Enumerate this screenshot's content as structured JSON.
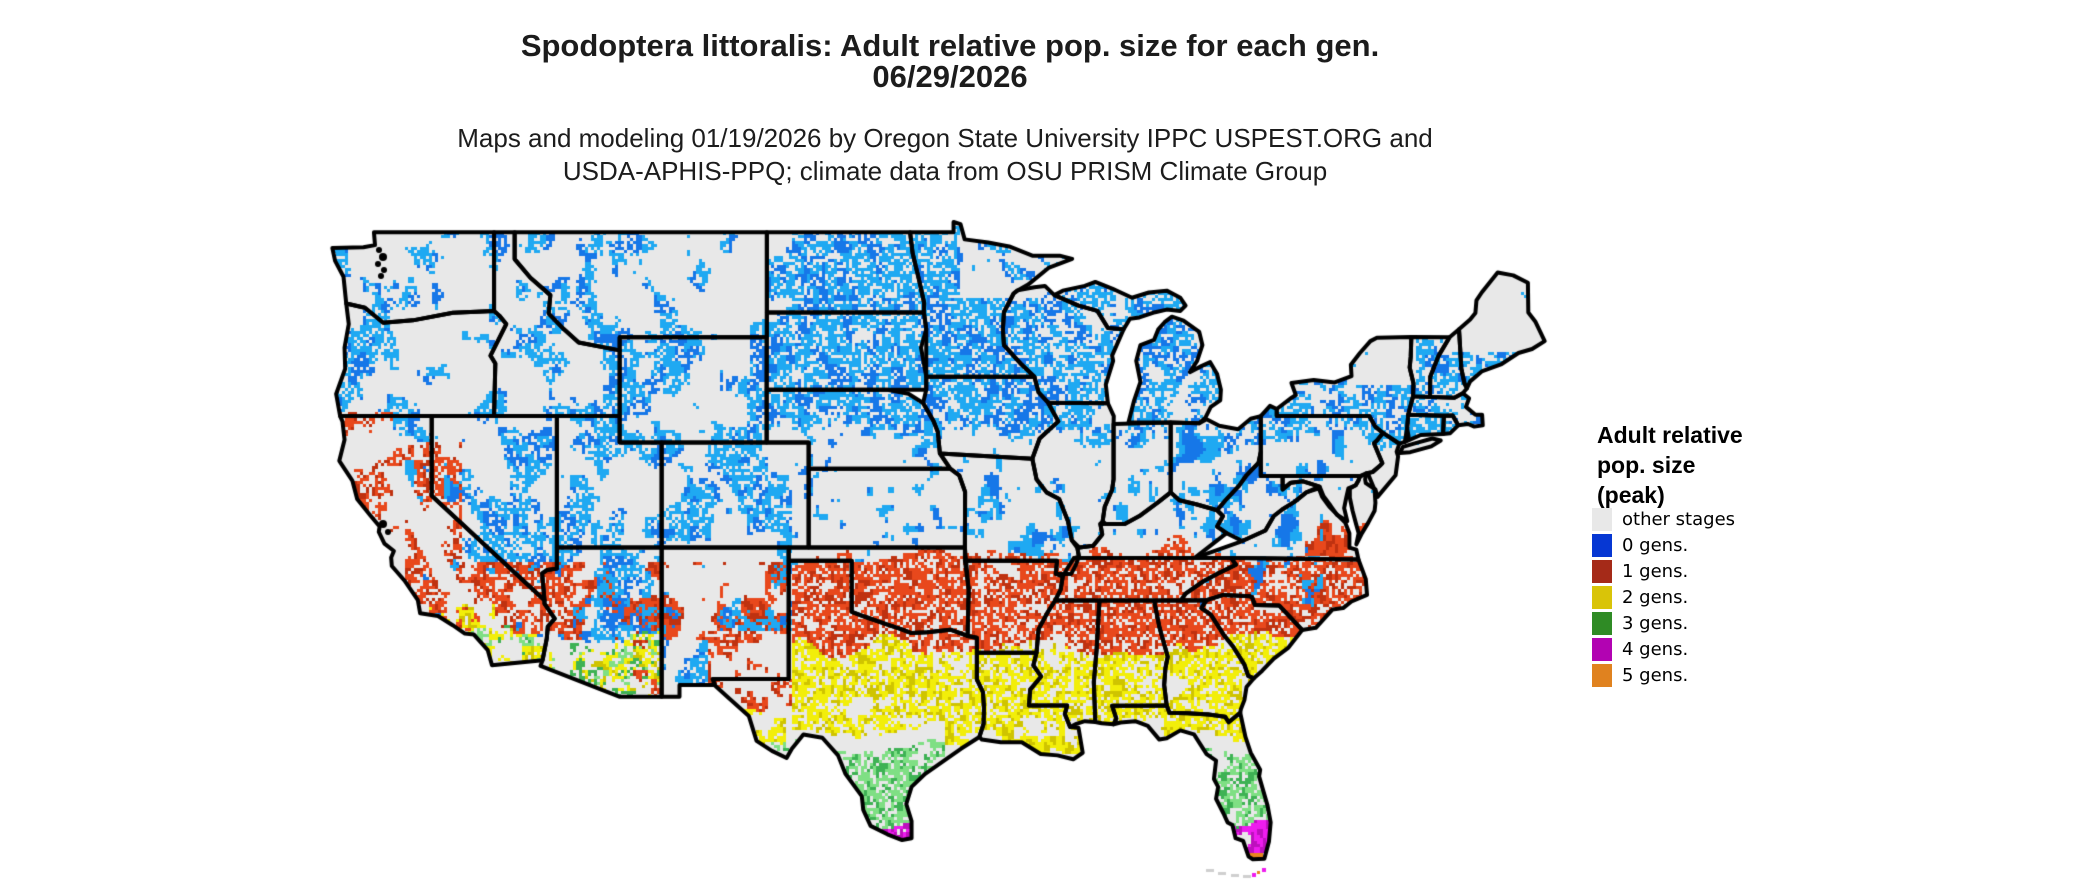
{
  "header": {
    "title_line1": "Spodoptera littoralis: Adult relative pop. size for each gen.",
    "title_line2": "06/29/2026",
    "subtitle_line1": "Maps and modeling 01/19/2026 by Oregon State University IPPC USPEST.ORG and",
    "subtitle_line2": "USDA-APHIS-PPQ; climate data from OSU PRISM Climate Group"
  },
  "legend": {
    "title_lines": [
      "Adult relative",
      "pop. size",
      "(peak)"
    ]
  },
  "map": {
    "region": "Continental United States",
    "background_color": "#ffffff",
    "land_color": "#e8e8e8",
    "border_color": "#000000",
    "zones": [
      {
        "label": "other stages",
        "legend_color": "#e8e8e8",
        "map_shades": [
          "#e8e8e8"
        ]
      },
      {
        "label": "0 gens.",
        "legend_color": "#0637d3",
        "map_shades": [
          "#1fa9f2",
          "#1677e8"
        ]
      },
      {
        "label": "1 gens.",
        "legend_color": "#a52a18",
        "map_shades": [
          "#e8481c",
          "#bf3210"
        ]
      },
      {
        "label": "2 gens.",
        "legend_color": "#d9c408",
        "map_shades": [
          "#f2ee0a",
          "#cfc400"
        ]
      },
      {
        "label": "3 gens.",
        "legend_color": "#2f8b25",
        "map_shades": [
          "#7fdf84",
          "#3eb254"
        ]
      },
      {
        "label": "4 gens.",
        "legend_color": "#b203b2",
        "map_shades": [
          "#ee1cee",
          "#bd10bd"
        ]
      },
      {
        "label": "5 gens.",
        "legend_color": "#e0821f",
        "map_shades": [
          "#e8861e"
        ]
      }
    ]
  }
}
